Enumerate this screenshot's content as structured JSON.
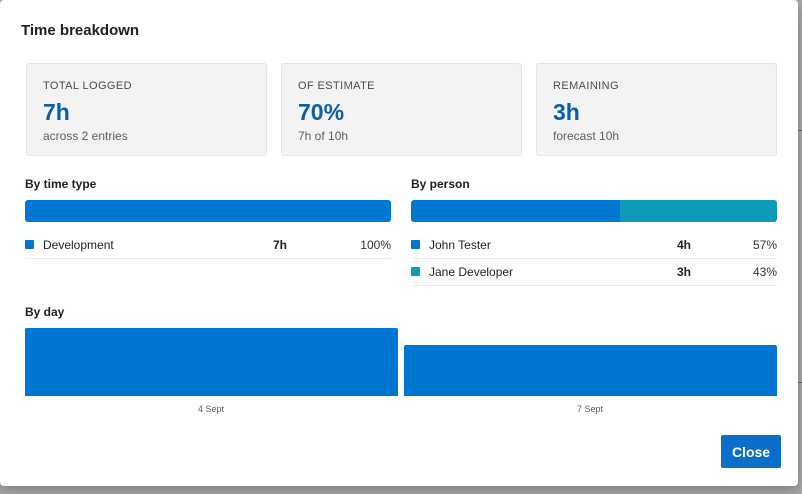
{
  "dialog": {
    "title": "Time breakdown",
    "close_label": "Close"
  },
  "stats": [
    {
      "label": "TOTAL LOGGED",
      "value": "7h",
      "sub": "across 2 entries"
    },
    {
      "label": "OF ESTIMATE",
      "value": "70%",
      "sub": "7h of 10h"
    },
    {
      "label": "REMAINING",
      "value": "3h",
      "sub": "forecast 10h"
    }
  ],
  "by_time_type": {
    "heading": "By time type",
    "items": [
      {
        "name": "Development",
        "hours": "7h",
        "percent": "100%",
        "fraction": 1.0,
        "color": "#0076d3"
      }
    ]
  },
  "by_person": {
    "heading": "By person",
    "items": [
      {
        "name": "John Tester",
        "hours": "4h",
        "percent": "57%",
        "fraction": 0.57,
        "color": "#0076d3"
      },
      {
        "name": "Jane Developer",
        "hours": "3h",
        "percent": "43%",
        "fraction": 0.43,
        "color": "#0e9ab8"
      }
    ]
  },
  "by_day": {
    "heading": "By day",
    "days": [
      {
        "label": "4 Sept",
        "hours": 4
      },
      {
        "label": "7 Sept",
        "hours": 3
      }
    ],
    "color": "#0076d3"
  }
}
